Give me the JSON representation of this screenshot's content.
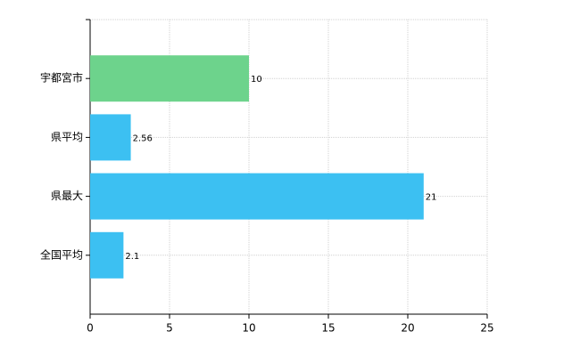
{
  "chart_data": {
    "type": "bar",
    "orientation": "horizontal",
    "categories": [
      "宇都宮市",
      "県平均",
      "県最大",
      "全国平均"
    ],
    "values": [
      10,
      2.56,
      21,
      2.1
    ],
    "colors": [
      "#6dd38c",
      "#3cc0f2",
      "#3cc0f2",
      "#3cc0f2"
    ],
    "xlim": [
      0,
      25
    ],
    "xticks": [
      0,
      5,
      10,
      15,
      20,
      25
    ],
    "grid": true
  }
}
